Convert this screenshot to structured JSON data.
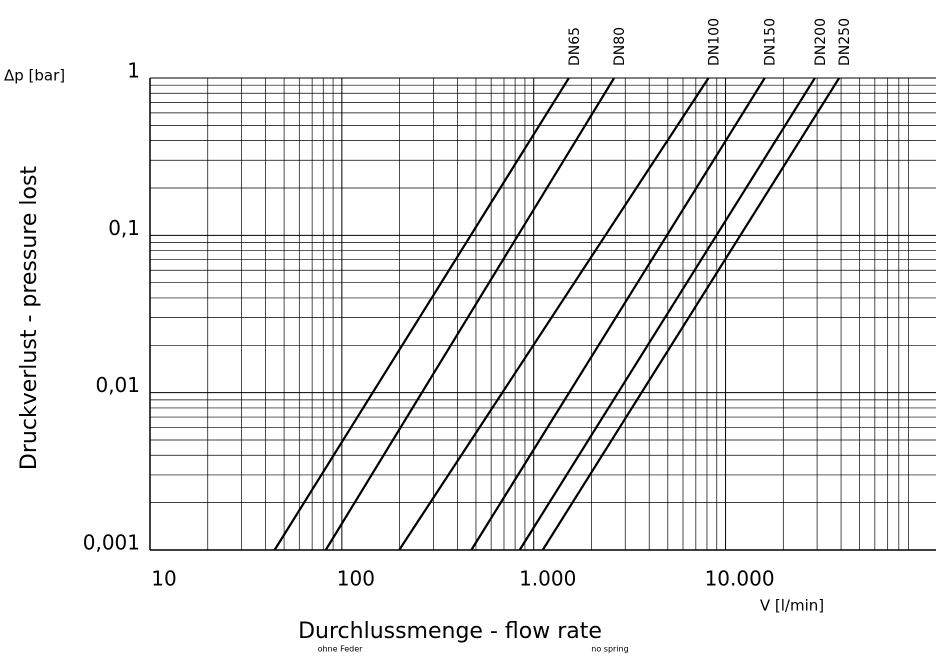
{
  "chart_data": {
    "type": "line",
    "log_x": true,
    "log_y": true,
    "grid": true,
    "y_unit_label": "Δp [bar]",
    "x_label": "Durchlussmenge - flow rate",
    "y_label": "Druckverlust - pressure lost",
    "x_unit_label": "V [l/min]",
    "notes": [
      "ohne Feder",
      "no spring"
    ],
    "xlim": [
      10,
      125000
    ],
    "ylim": [
      0.001,
      1
    ],
    "xticks": [
      10,
      100,
      {
        "value": 1000,
        "label": "1.000"
      },
      {
        "value": 10000,
        "label": "10.000"
      }
    ],
    "yticks": [
      {
        "value": 0.001,
        "label": "0,001"
      },
      {
        "value": 0.01,
        "label": "0,01"
      },
      {
        "value": 0.1,
        "label": "0,1"
      },
      1
    ],
    "series": [
      {
        "name": "DN65",
        "color": "#000000",
        "x": [
          44.6,
          1525
        ],
        "values": [
          0.001,
          1
        ]
      },
      {
        "name": "DN80",
        "color": "#000000",
        "x": [
          82.4,
          2625
        ],
        "values": [
          0.001,
          1
        ]
      },
      {
        "name": "DN100",
        "color": "#000000",
        "x": [
          199,
          8150
        ],
        "values": [
          0.001,
          1
        ]
      },
      {
        "name": "DN150",
        "color": "#000000",
        "x": [
          473,
          16000
        ],
        "values": [
          0.001,
          1
        ]
      },
      {
        "name": "DN200",
        "color": "#000000",
        "x": [
          845,
          29200
        ],
        "values": [
          0.001,
          1
        ]
      },
      {
        "name": "DN250",
        "color": "#000000",
        "x": [
          1114,
          39100
        ],
        "values": [
          0.001,
          1
        ]
      }
    ]
  }
}
